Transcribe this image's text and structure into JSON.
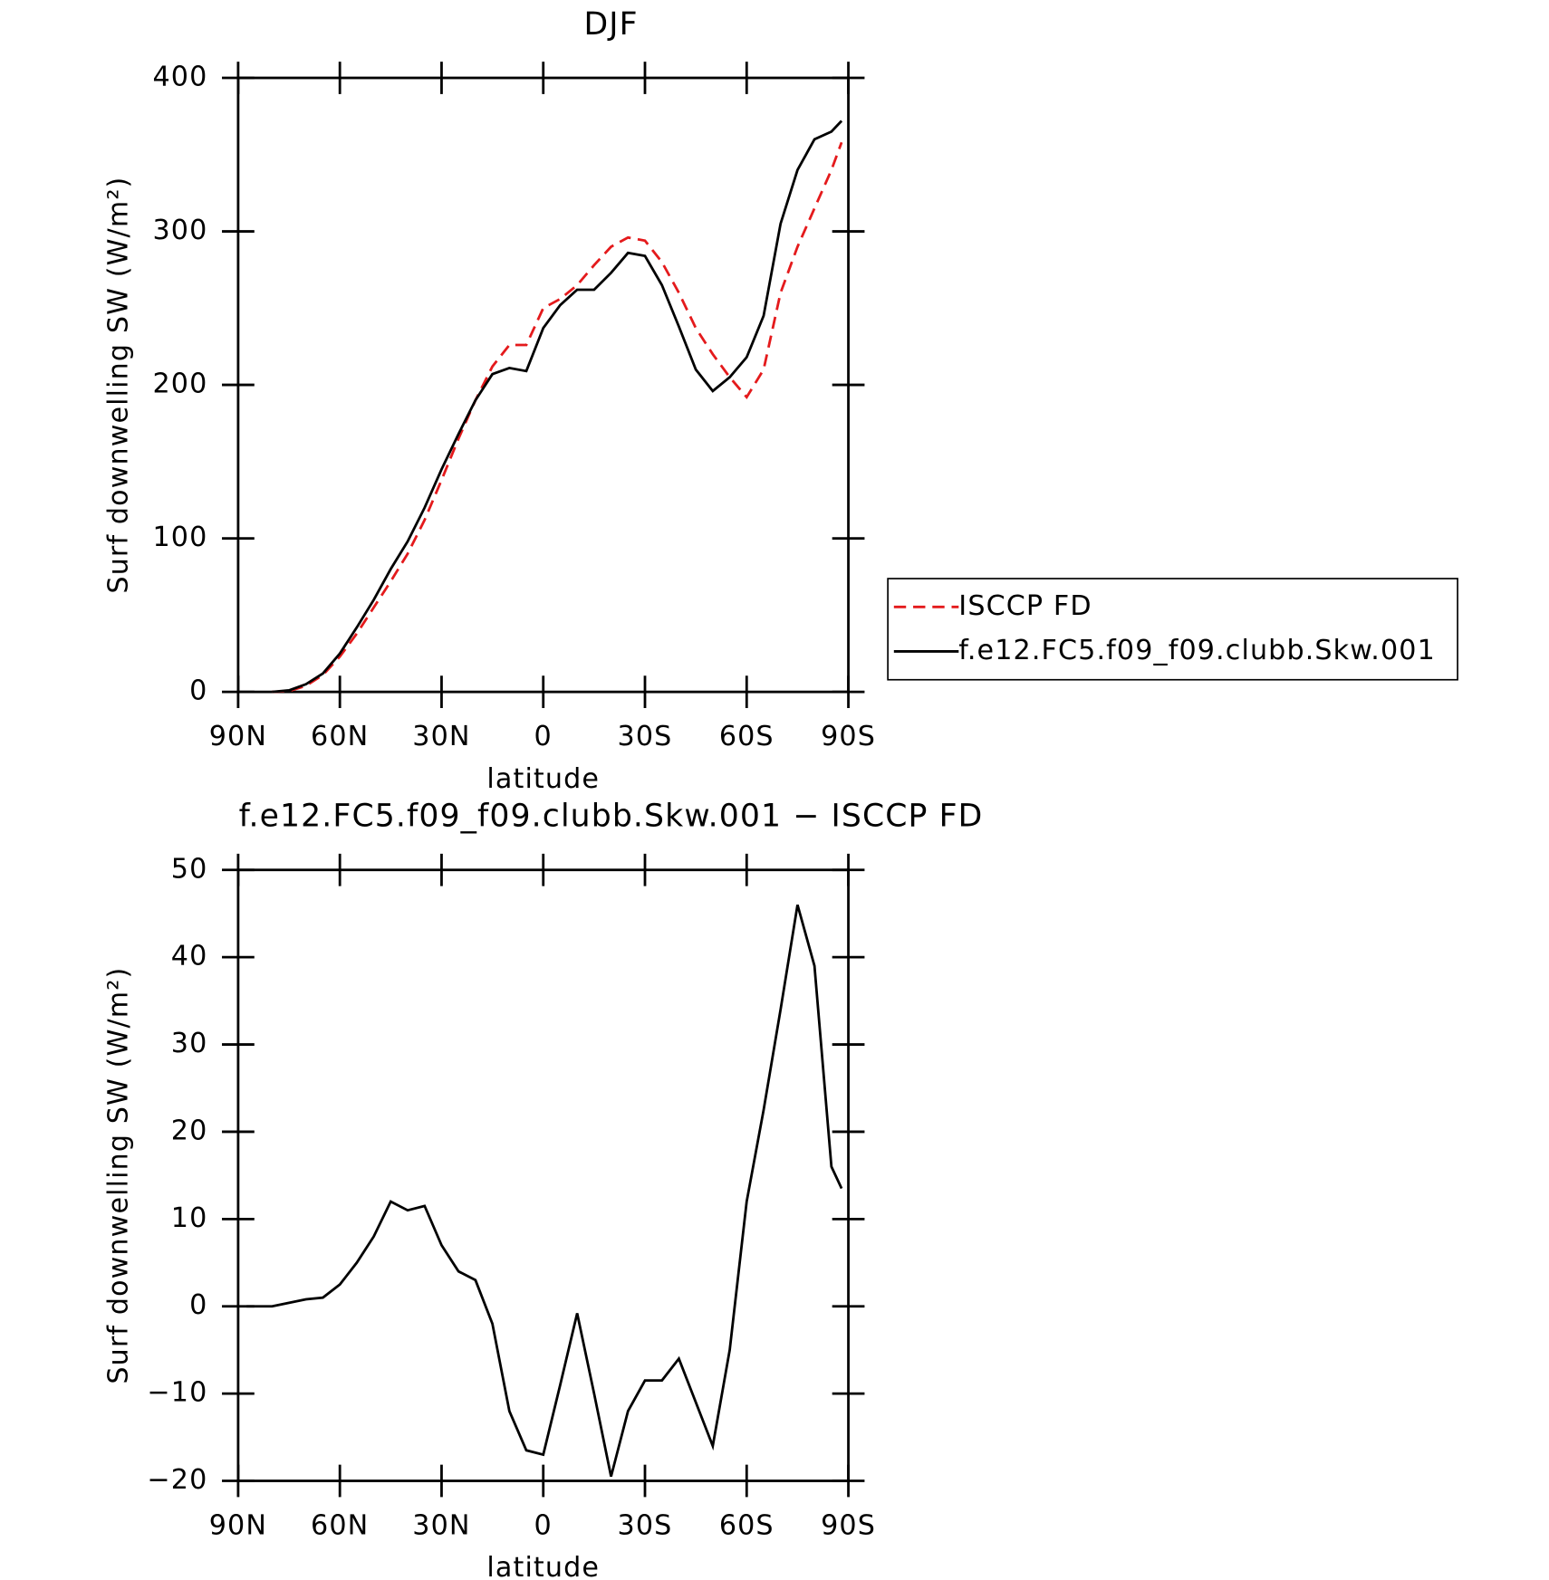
{
  "chart_data": [
    {
      "type": "line",
      "title": "DJF",
      "xlabel": "latitude",
      "ylabel": "Surf downwelling SW (W/m²)",
      "xlim": [
        90,
        -90
      ],
      "xticks": [
        {
          "value": 90,
          "label": "90N"
        },
        {
          "value": 60,
          "label": "60N"
        },
        {
          "value": 30,
          "label": "30N"
        },
        0,
        {
          "value": -30,
          "label": "30S"
        },
        {
          "value": -60,
          "label": "60S"
        },
        {
          "value": -90,
          "label": "90S"
        }
      ],
      "ylim": [
        0,
        400
      ],
      "yticks": [
        0,
        100,
        200,
        300,
        400
      ],
      "legend": "right",
      "x": [
        80,
        75,
        70,
        65,
        60,
        55,
        50,
        45,
        40,
        35,
        30,
        25,
        20,
        15,
        10,
        5,
        0,
        -5,
        -10,
        -15,
        -20,
        -25,
        -30,
        -35,
        -40,
        -45,
        -50,
        -55,
        -60,
        -65,
        -70,
        -75,
        -80,
        -85,
        -88
      ],
      "series": [
        {
          "name": "ISCCP FD",
          "color": "#e41a1c",
          "dash": true,
          "values": [
            0,
            0.5,
            4,
            11,
            23,
            38,
            55,
            72,
            90,
            112,
            138,
            165,
            190,
            212,
            226,
            226,
            250,
            256,
            265,
            278,
            290,
            296,
            294,
            280,
            260,
            237,
            220,
            205,
            192,
            210,
            260,
            290,
            315,
            340,
            358
          ]
        },
        {
          "name": "f.e12.FC5.f09_f09.clubb.Skw.001",
          "color": "#000000",
          "dash": false,
          "values": [
            0,
            1,
            5,
            12,
            25,
            42,
            60,
            80,
            98,
            120,
            145,
            168,
            190,
            207,
            211,
            209,
            237,
            252,
            262,
            262,
            273,
            286,
            284,
            265,
            238,
            210,
            196,
            205,
            218,
            245,
            305,
            340,
            360,
            365,
            372
          ]
        }
      ]
    },
    {
      "type": "line",
      "title": "f.e12.FC5.f09_f09.clubb.Skw.001 − ISCCP FD",
      "xlabel": "latitude",
      "ylabel": "Surf downwelling SW (W/m²)",
      "xlim": [
        90,
        -90
      ],
      "xticks": [
        {
          "value": 90,
          "label": "90N"
        },
        {
          "value": 60,
          "label": "60N"
        },
        {
          "value": 30,
          "label": "30N"
        },
        0,
        {
          "value": -30,
          "label": "30S"
        },
        {
          "value": -60,
          "label": "60S"
        },
        {
          "value": -90,
          "label": "90S"
        }
      ],
      "ylim": [
        -20,
        50
      ],
      "yticks": [
        {
          "value": -20,
          "label": "−20"
        },
        {
          "value": -10,
          "label": "−10"
        },
        0,
        10,
        20,
        30,
        40,
        50
      ],
      "x": [
        87.5,
        85,
        80,
        75,
        70,
        65,
        60,
        55,
        50,
        45,
        40,
        35,
        30,
        25,
        20,
        15,
        10,
        5,
        0,
        -5,
        -10,
        -15,
        -20,
        -25,
        -30,
        -35,
        -40,
        -45,
        -50,
        -55,
        -60,
        -65,
        -70,
        -75,
        -80,
        -85,
        -88
      ],
      "series": [
        {
          "color": "#000000",
          "dash": false,
          "values": [
            0,
            0,
            0,
            0.4,
            0.8,
            1.0,
            2.5,
            5,
            8,
            12,
            11,
            11.5,
            7,
            4,
            3,
            -2,
            -12,
            -16.5,
            -17,
            -9,
            -0.8,
            -10,
            -19.5,
            -12,
            -8.5,
            -8.5,
            -6,
            -11,
            -16,
            -5,
            12,
            22.5,
            34,
            46,
            39,
            16,
            13.5
          ]
        }
      ]
    }
  ]
}
